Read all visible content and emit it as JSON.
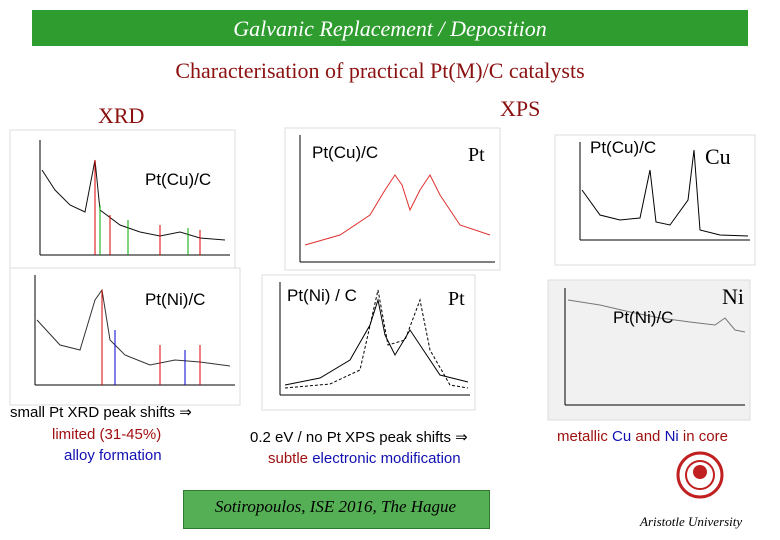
{
  "header": {
    "title": "Galvanic Replacement / Deposition"
  },
  "subtitle": "Characterisation of practical Pt(M)/C catalysts",
  "sections": {
    "xrd": "XRD",
    "xps": "XPS"
  },
  "panels": {
    "xrd_cu": {
      "label": "Pt(Cu)/C"
    },
    "xrd_ni": {
      "label": "Pt(Ni)/C"
    },
    "xps_pt_cu": {
      "label": "Pt(Cu)/C",
      "element": "Pt"
    },
    "xps_pt_ni": {
      "label": "Pt(Ni) / C",
      "element": "Pt"
    },
    "xps_cu": {
      "label": "Pt(Cu)/C",
      "element": "Cu"
    },
    "xps_ni": {
      "label": "Pt(Ni)/C",
      "element": "Ni"
    }
  },
  "notes": {
    "xrd": [
      "small Pt XRD peak shifts ⇒",
      "limited (31-45%)",
      "alloy formation"
    ],
    "xps_pt": {
      "line1": "0.2 eV / no Pt XPS peak shifts ⇒",
      "line2": [
        "subtle",
        " electronic modification"
      ]
    },
    "xps_m": [
      "metallic ",
      "Cu",
      " and ",
      "Ni",
      " in core"
    ]
  },
  "footer": {
    "citation": "Sotiropoulos, ISE 2016, The Hague",
    "institution": "Aristotle University"
  }
}
